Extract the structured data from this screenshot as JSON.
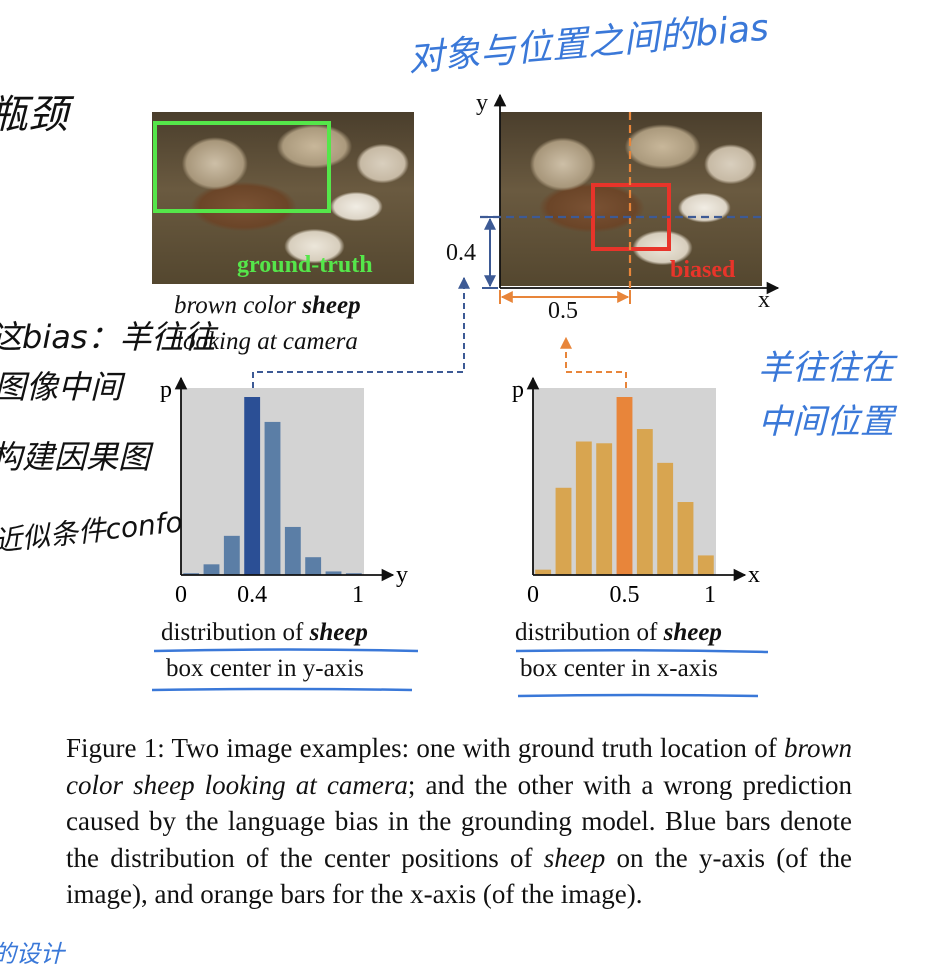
{
  "annotations": {
    "top_left": "瓶颈",
    "left_1": "这bias：羊往往",
    "left_2": "图像中间",
    "left_3": "构建因果图",
    "left_4": "近似条件confounder",
    "top_right": "对象与位置之间的bias",
    "right_1": "羊往往在",
    "right_2": "中间位置",
    "bottom_left": "的设计"
  },
  "figure": {
    "left_image_label": "ground-truth",
    "query_plain": "brown color ",
    "query_bold": "sheep",
    "query_line2": "looking at camera",
    "right_image_label": "biased",
    "right_axis_y": "y",
    "right_axis_x": "x",
    "measure_y": "0.4",
    "measure_x": "0.5",
    "colors": {
      "ground_truth_box": "#55e64a",
      "biased_box": "#e8342a",
      "blue_bar": "#5b7ea6",
      "blue_bar_highlight": "#2b4f95",
      "orange_bar": "#d8a550",
      "orange_bar_highlight": "#e8853a",
      "plot_bg": "#d3d3d3",
      "annotation_blue": "#3a78d8"
    }
  },
  "chart_data": [
    {
      "type": "bar",
      "axis": "y",
      "ylabel": "p",
      "xlabel": "y",
      "xticks": [
        "0",
        "0.4",
        "1"
      ],
      "highlight_index": 3,
      "values": [
        0.01,
        0.06,
        0.22,
        1.0,
        0.86,
        0.27,
        0.1,
        0.02,
        0.01
      ],
      "caption_line1_plain": "distribution of ",
      "caption_line1_bold": "sheep",
      "caption_line2": "box center in y-axis"
    },
    {
      "type": "bar",
      "axis": "x",
      "ylabel": "p",
      "xlabel": "x",
      "xticks": [
        "0",
        "0.5",
        "1"
      ],
      "highlight_index": 4,
      "values": [
        0.03,
        0.49,
        0.75,
        0.74,
        1.0,
        0.82,
        0.63,
        0.41,
        0.11
      ],
      "caption_line1_plain": "distribution of ",
      "caption_line1_bold": "sheep",
      "caption_line2": "box center in x-axis"
    }
  ],
  "caption": {
    "label": "Figure 1:",
    "text_1": " Two image examples: one with ground truth location of ",
    "italic_1": "brown color sheep looking at camera",
    "text_2": "; and the other with a wrong prediction caused by the language bias in the grounding model. Blue bars denote the distribution of the center positions of ",
    "italic_2": "sheep",
    "text_3": " on the y-axis (of the image), and orange bars for the x-axis (of the image)."
  }
}
